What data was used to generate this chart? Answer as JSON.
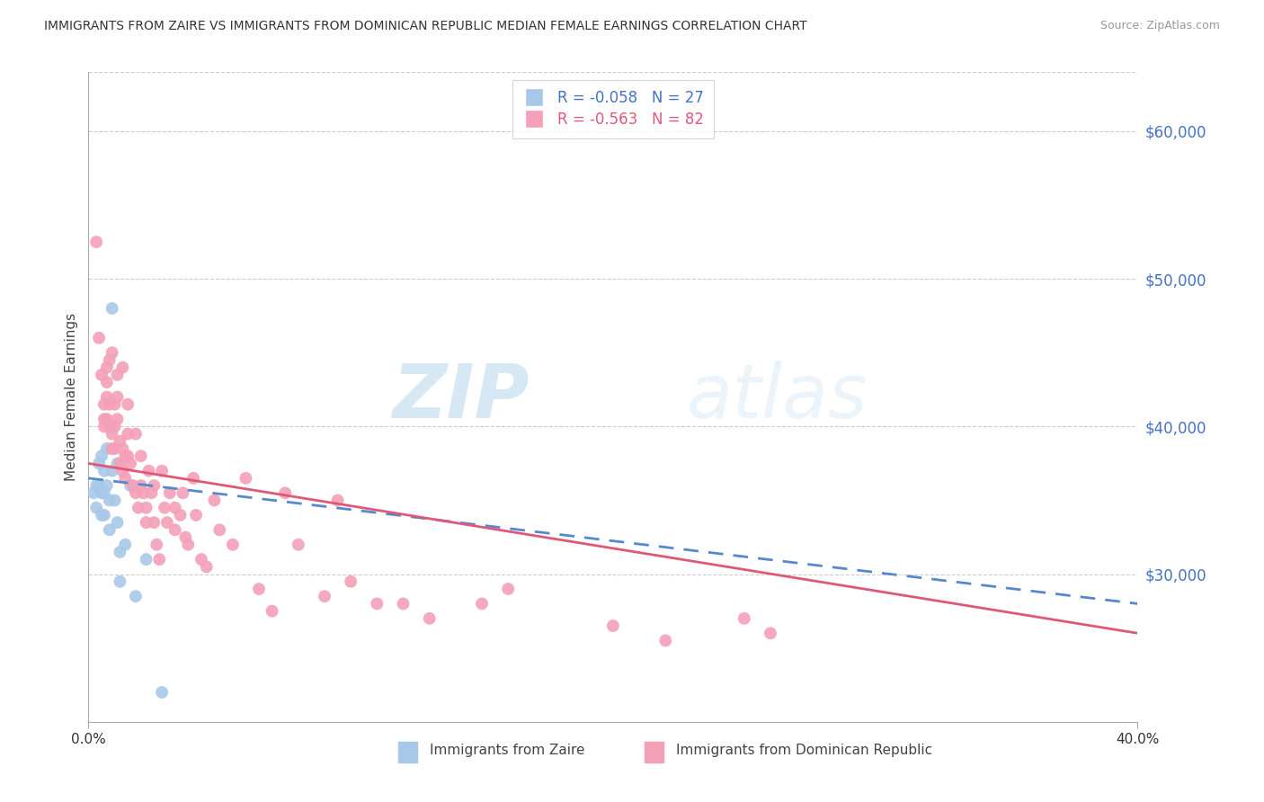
{
  "title": "IMMIGRANTS FROM ZAIRE VS IMMIGRANTS FROM DOMINICAN REPUBLIC MEDIAN FEMALE EARNINGS CORRELATION CHART",
  "source": "Source: ZipAtlas.com",
  "ylabel": "Median Female Earnings",
  "legend_labels": [
    "Immigrants from Zaire",
    "Immigrants from Dominican Republic"
  ],
  "legend_r_values": [
    "R = -0.058",
    "R = -0.563"
  ],
  "legend_n_values": [
    "N = 27",
    "N = 82"
  ],
  "zaire_color": "#a8c8e8",
  "zaire_line_color": "#5588cc",
  "dr_color": "#f4a0b8",
  "dr_line_color": "#e05878",
  "ylim": [
    20000,
    64000
  ],
  "xlim": [
    0.0,
    0.4
  ],
  "watermark_zip": "ZIP",
  "watermark_atlas": "atlas",
  "zaire_points": [
    [
      0.002,
      35500
    ],
    [
      0.003,
      36000
    ],
    [
      0.003,
      34500
    ],
    [
      0.004,
      37500
    ],
    [
      0.004,
      36000
    ],
    [
      0.005,
      38000
    ],
    [
      0.005,
      35500
    ],
    [
      0.005,
      34000
    ],
    [
      0.006,
      37000
    ],
    [
      0.006,
      35500
    ],
    [
      0.006,
      34000
    ],
    [
      0.007,
      38500
    ],
    [
      0.007,
      36000
    ],
    [
      0.008,
      35000
    ],
    [
      0.008,
      33000
    ],
    [
      0.009,
      48000
    ],
    [
      0.009,
      37000
    ],
    [
      0.01,
      35000
    ],
    [
      0.011,
      37500
    ],
    [
      0.011,
      33500
    ],
    [
      0.012,
      31500
    ],
    [
      0.012,
      29500
    ],
    [
      0.014,
      32000
    ],
    [
      0.016,
      36000
    ],
    [
      0.018,
      28500
    ],
    [
      0.022,
      31000
    ],
    [
      0.028,
      22000
    ]
  ],
  "dr_points": [
    [
      0.003,
      52500
    ],
    [
      0.004,
      46000
    ],
    [
      0.005,
      43500
    ],
    [
      0.006,
      41500
    ],
    [
      0.006,
      40500
    ],
    [
      0.006,
      40000
    ],
    [
      0.007,
      44000
    ],
    [
      0.007,
      43000
    ],
    [
      0.007,
      42000
    ],
    [
      0.007,
      40500
    ],
    [
      0.008,
      44500
    ],
    [
      0.008,
      41500
    ],
    [
      0.008,
      40000
    ],
    [
      0.009,
      45000
    ],
    [
      0.009,
      39500
    ],
    [
      0.009,
      38500
    ],
    [
      0.01,
      41500
    ],
    [
      0.01,
      40000
    ],
    [
      0.01,
      38500
    ],
    [
      0.011,
      43500
    ],
    [
      0.011,
      42000
    ],
    [
      0.011,
      40500
    ],
    [
      0.012,
      39000
    ],
    [
      0.012,
      37500
    ],
    [
      0.013,
      44000
    ],
    [
      0.013,
      38500
    ],
    [
      0.013,
      37000
    ],
    [
      0.014,
      38000
    ],
    [
      0.014,
      36500
    ],
    [
      0.015,
      41500
    ],
    [
      0.015,
      39500
    ],
    [
      0.015,
      38000
    ],
    [
      0.016,
      37500
    ],
    [
      0.017,
      36000
    ],
    [
      0.018,
      39500
    ],
    [
      0.018,
      35500
    ],
    [
      0.019,
      34500
    ],
    [
      0.02,
      38000
    ],
    [
      0.02,
      36000
    ],
    [
      0.021,
      35500
    ],
    [
      0.022,
      34500
    ],
    [
      0.022,
      33500
    ],
    [
      0.023,
      37000
    ],
    [
      0.024,
      35500
    ],
    [
      0.025,
      36000
    ],
    [
      0.025,
      33500
    ],
    [
      0.026,
      32000
    ],
    [
      0.027,
      31000
    ],
    [
      0.028,
      37000
    ],
    [
      0.029,
      34500
    ],
    [
      0.03,
      33500
    ],
    [
      0.031,
      35500
    ],
    [
      0.033,
      34500
    ],
    [
      0.033,
      33000
    ],
    [
      0.035,
      34000
    ],
    [
      0.036,
      35500
    ],
    [
      0.037,
      32500
    ],
    [
      0.038,
      32000
    ],
    [
      0.04,
      36500
    ],
    [
      0.041,
      34000
    ],
    [
      0.043,
      31000
    ],
    [
      0.045,
      30500
    ],
    [
      0.048,
      35000
    ],
    [
      0.05,
      33000
    ],
    [
      0.055,
      32000
    ],
    [
      0.06,
      36500
    ],
    [
      0.065,
      29000
    ],
    [
      0.07,
      27500
    ],
    [
      0.075,
      35500
    ],
    [
      0.08,
      32000
    ],
    [
      0.09,
      28500
    ],
    [
      0.095,
      35000
    ],
    [
      0.1,
      29500
    ],
    [
      0.11,
      28000
    ],
    [
      0.12,
      28000
    ],
    [
      0.13,
      27000
    ],
    [
      0.15,
      28000
    ],
    [
      0.16,
      29000
    ],
    [
      0.2,
      26500
    ],
    [
      0.22,
      25500
    ],
    [
      0.25,
      27000
    ],
    [
      0.26,
      26000
    ]
  ]
}
